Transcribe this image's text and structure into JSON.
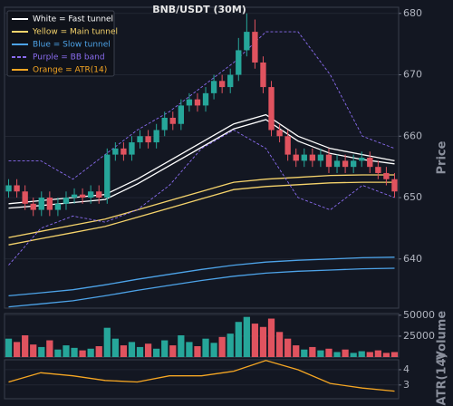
{
  "chart_data": [
    {
      "type": "candlestick",
      "title": "BNB/USDT (30M)",
      "y_label": "Price",
      "up_color": "#26a69a",
      "down_color": "#e0535f",
      "open": [
        651,
        652,
        651,
        649,
        648,
        650,
        648,
        649,
        650,
        650.5,
        650,
        651,
        650,
        657,
        658,
        657,
        659,
        660,
        659,
        661,
        663,
        662,
        665,
        666,
        665,
        667,
        669,
        668,
        670,
        674,
        677,
        672,
        668,
        661,
        660,
        657,
        656,
        657,
        656,
        657,
        655,
        656,
        655,
        656,
        656.5,
        655,
        654,
        653
      ],
      "high": [
        653,
        653,
        652,
        650,
        651,
        651,
        650,
        651,
        651.5,
        651.5,
        652,
        652,
        658,
        659,
        659,
        660,
        661,
        661,
        662,
        664,
        664,
        666,
        667,
        667,
        668,
        670,
        670,
        671,
        676,
        680,
        679,
        673,
        669,
        662,
        661,
        658,
        658,
        658,
        658,
        658,
        657,
        657,
        657,
        657.5,
        657.5,
        656,
        655,
        654
      ],
      "low": [
        650,
        650,
        648,
        647,
        647,
        647,
        647,
        648,
        649,
        649,
        649,
        649,
        649,
        656,
        656,
        656,
        658,
        658,
        658,
        660,
        661,
        661,
        664,
        664,
        664,
        666,
        667,
        667,
        669,
        673,
        671,
        667,
        660,
        659,
        656,
        655,
        655,
        655,
        655,
        654,
        654,
        654,
        654,
        655,
        654,
        653,
        652,
        650
      ],
      "close": [
        652,
        651,
        649,
        648,
        650,
        648,
        649,
        650,
        650.5,
        650,
        651,
        650,
        657,
        658,
        657,
        659,
        660,
        659,
        661,
        663,
        662,
        665,
        666,
        665,
        667,
        669,
        668,
        670,
        674,
        677,
        672,
        668,
        661,
        660,
        657,
        656,
        657,
        656,
        657,
        655,
        656,
        655,
        656,
        656.5,
        655,
        654,
        653,
        651
      ],
      "lines": [
        {
          "name": "White = Fast tunnel",
          "color": "#ffffff",
          "dash": false,
          "upper": [
            649,
            649.5,
            650,
            650.5,
            653,
            656,
            659,
            662,
            663.5,
            660,
            658,
            657,
            656
          ],
          "lower": [
            648.3,
            648.7,
            649.2,
            649.7,
            652.2,
            655.2,
            658.2,
            661.2,
            662.7,
            659.2,
            657.2,
            656.2,
            655.5
          ]
        },
        {
          "name": "Yellow = Main tunnel",
          "color": "#f5d36b",
          "dash": false,
          "upper": [
            643.5,
            644.5,
            645.5,
            646.5,
            648,
            649.5,
            651,
            652.5,
            653,
            653.3,
            653.6,
            653.7,
            653.7
          ],
          "lower": [
            642.3,
            643.3,
            644.3,
            645.3,
            646.8,
            648.3,
            649.8,
            651.3,
            651.8,
            652.1,
            652.4,
            652.5,
            652.5
          ]
        },
        {
          "name": "Blue = Slow tunnel",
          "color": "#4da3e8",
          "dash": false,
          "upper": [
            634,
            634.5,
            635,
            635.8,
            636.7,
            637.5,
            638.3,
            639,
            639.5,
            639.8,
            640,
            640.2,
            640.3
          ],
          "lower": [
            632.2,
            632.7,
            633.2,
            634,
            634.9,
            635.7,
            636.5,
            637.2,
            637.7,
            638,
            638.2,
            638.4,
            638.5
          ]
        },
        {
          "name": "Purple = BB band",
          "color": "#8a6cf0",
          "dash": true,
          "upper": [
            656,
            656,
            653,
            657,
            661,
            664,
            668,
            672,
            677,
            677,
            670,
            660,
            658
          ],
          "lower": [
            639,
            645,
            647,
            646,
            648,
            652,
            658,
            661,
            658,
            650,
            648,
            652,
            650
          ]
        },
        {
          "name": "Orange = ATR(14)",
          "color": "#f5a623",
          "dash": false,
          "upper": [],
          "lower": []
        }
      ],
      "ylim": [
        632,
        681
      ],
      "yticks": [
        640,
        650,
        660,
        670,
        680
      ],
      "grid": true
    },
    {
      "type": "bar",
      "y_label": "Volume",
      "values": [
        22000,
        18000,
        26000,
        15000,
        12000,
        20000,
        9000,
        14000,
        11000,
        8000,
        10000,
        13000,
        35000,
        22000,
        14000,
        18000,
        12000,
        16000,
        10000,
        20000,
        14000,
        26000,
        18000,
        13000,
        22000,
        17000,
        24000,
        28000,
        42000,
        48000,
        40000,
        36000,
        46000,
        30000,
        22000,
        14000,
        9000,
        12000,
        8000,
        10000,
        6000,
        9000,
        5000,
        7000,
        6000,
        8000,
        5000,
        6000
      ],
      "ylim": [
        0,
        52000
      ],
      "yticks": [
        25000,
        50000
      ],
      "grid": true
    },
    {
      "type": "line",
      "y_label": "ATR(14)",
      "color": "#f5a623",
      "values": [
        3.2,
        3.8,
        3.6,
        3.3,
        3.2,
        3.6,
        3.6,
        3.9,
        4.6,
        4.0,
        3.1,
        2.8,
        2.6
      ],
      "ylim": [
        2.1,
        4.65
      ],
      "yticks": [
        3,
        4
      ],
      "grid": true
    }
  ]
}
